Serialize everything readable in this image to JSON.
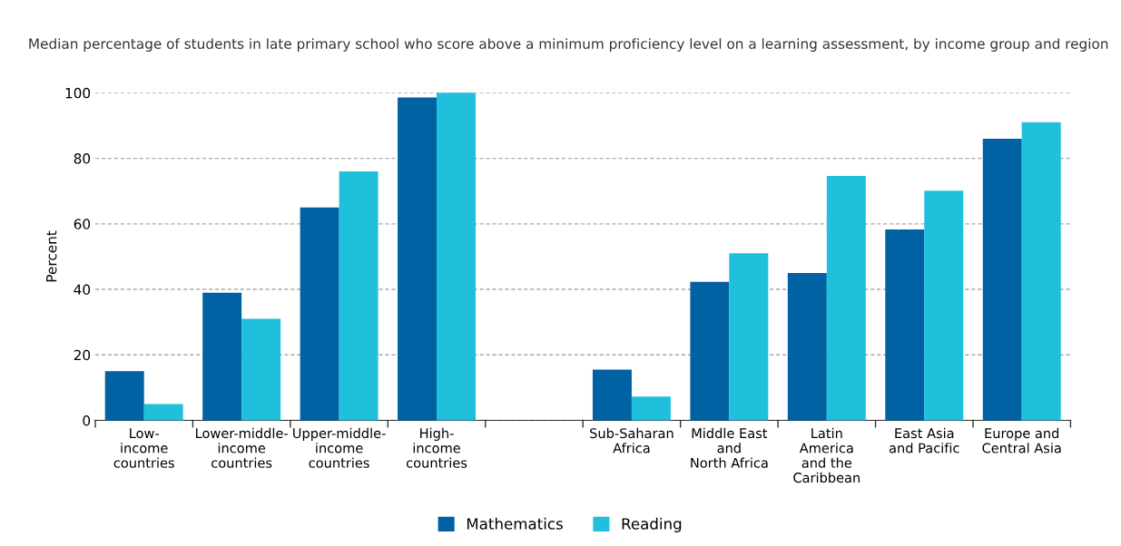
{
  "chart_data": {
    "type": "bar",
    "title": "Median percentage of students in late primary school who score above a minimum proficiency level on a learning assessment, by income group and region",
    "ylabel": "Percent",
    "categories": [
      "Low-\nincome\ncountries",
      "Lower-middle-\nincome\ncountries",
      "Upper-middle-\nincome\ncountries",
      "High-\nincome\ncountries",
      null,
      "Sub-Saharan\nAfrica",
      "Middle East\nand\nNorth Africa",
      "Latin\nAmerica\nand the\nCaribbean",
      "East Asia\nand Pacific",
      "Europe and\nCentral Asia"
    ],
    "series": [
      {
        "name": "Mathematics",
        "color": "#0061a3",
        "values": [
          15,
          39,
          65,
          98.6,
          null,
          15.5,
          42.3,
          45,
          58.3,
          86
        ]
      },
      {
        "name": "Reading",
        "color": "#20bfdb",
        "values": [
          5,
          31,
          76,
          100,
          null,
          7.3,
          51,
          74.6,
          70.1,
          91
        ]
      }
    ],
    "ylim": [
      0,
      100
    ],
    "yticks": [
      0,
      20,
      40,
      60,
      80,
      100
    ],
    "grid": "y",
    "legend": "bottom"
  }
}
